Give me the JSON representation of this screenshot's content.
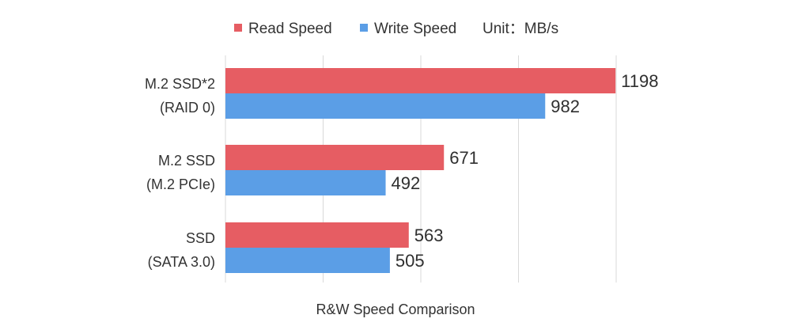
{
  "chart_data": {
    "type": "bar",
    "orientation": "horizontal",
    "categories": [
      [
        "M.2  SSD*2",
        "(RAID 0)"
      ],
      [
        "M.2 SSD",
        "(M.2 PCIe)"
      ],
      [
        "SSD",
        "(SATA 3.0)"
      ]
    ],
    "series": [
      {
        "name": "Read Speed",
        "values": [
          1198,
          671,
          563
        ],
        "color": "#e65d63"
      },
      {
        "name": "Write Speed",
        "values": [
          982,
          492,
          505
        ],
        "color": "#5b9ee6"
      }
    ],
    "xlim": [
      0,
      1200
    ],
    "grid": true,
    "legend_position": "top-center",
    "unit_text": "Unit：MB/s",
    "xlabel": "R&W Speed Comparison",
    "title": ""
  }
}
